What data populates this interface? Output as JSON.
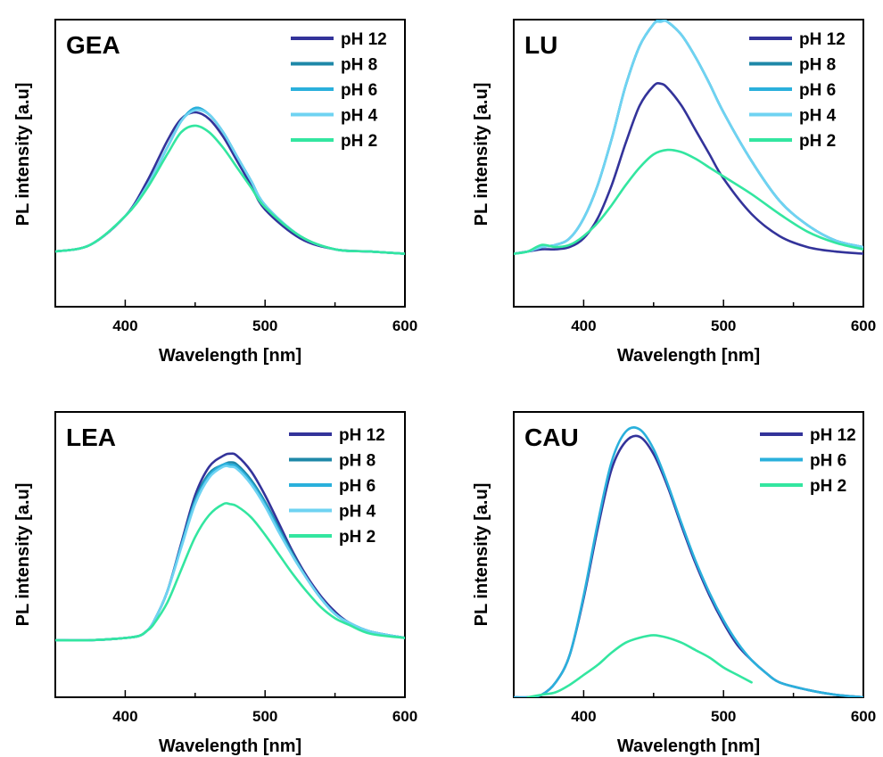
{
  "colors": {
    "pH 12": "#33339a",
    "pH 8": "#1e88a8",
    "pH 6": "#2ab0dc",
    "pH 4": "#6fd3f2",
    "pH 2": "#33e6a0"
  },
  "chart_data": [
    {
      "type": "line",
      "panel_label": "GEA",
      "xlabel": "Wavelength [nm]",
      "ylabel": "PL intensity [a.u]",
      "xlim": [
        350,
        600
      ],
      "ylim": [
        0,
        1.3
      ],
      "xticks": [
        400,
        500,
        600
      ],
      "show_yticks": false,
      "legend": [
        "pH 12",
        "pH 8",
        "pH 6",
        "pH 4",
        "pH 2"
      ],
      "legend_position": "top-right",
      "series": [
        {
          "name": "pH 12",
          "x": [
            350,
            375,
            400,
            415,
            430,
            440,
            450,
            460,
            470,
            480,
            490,
            500,
            525,
            550,
            575,
            600
          ],
          "y": [
            0.25,
            0.28,
            0.41,
            0.56,
            0.75,
            0.85,
            0.88,
            0.85,
            0.77,
            0.66,
            0.55,
            0.44,
            0.31,
            0.26,
            0.25,
            0.24
          ]
        },
        {
          "name": "pH 8",
          "x": [
            350,
            375,
            400,
            415,
            430,
            440,
            450,
            460,
            470,
            480,
            490,
            500,
            525,
            550,
            575,
            600
          ],
          "y": [
            0.25,
            0.28,
            0.41,
            0.54,
            0.72,
            0.84,
            0.9,
            0.87,
            0.79,
            0.68,
            0.57,
            0.46,
            0.32,
            0.26,
            0.25,
            0.24
          ]
        },
        {
          "name": "pH 6",
          "x": [
            350,
            375,
            400,
            415,
            430,
            440,
            450,
            460,
            470,
            480,
            490,
            500,
            525,
            550,
            575,
            600
          ],
          "y": [
            0.25,
            0.28,
            0.41,
            0.54,
            0.72,
            0.84,
            0.9,
            0.87,
            0.79,
            0.68,
            0.57,
            0.46,
            0.32,
            0.26,
            0.25,
            0.24
          ]
        },
        {
          "name": "pH 4",
          "x": [
            350,
            375,
            400,
            415,
            430,
            440,
            450,
            460,
            470,
            480,
            490,
            500,
            525,
            550,
            575,
            600
          ],
          "y": [
            0.25,
            0.28,
            0.41,
            0.54,
            0.72,
            0.84,
            0.89,
            0.87,
            0.79,
            0.68,
            0.57,
            0.46,
            0.32,
            0.26,
            0.25,
            0.24
          ]
        },
        {
          "name": "pH 2",
          "x": [
            350,
            375,
            400,
            415,
            430,
            440,
            450,
            460,
            470,
            480,
            490,
            500,
            525,
            550,
            575,
            600
          ],
          "y": [
            0.25,
            0.28,
            0.41,
            0.53,
            0.69,
            0.79,
            0.82,
            0.79,
            0.72,
            0.63,
            0.54,
            0.45,
            0.32,
            0.26,
            0.25,
            0.24
          ]
        }
      ]
    },
    {
      "type": "line",
      "panel_label": "LU",
      "xlabel": "Wavelength [nm]",
      "ylabel": "PL intensity [a.u]",
      "xlim": [
        350,
        600
      ],
      "ylim": [
        0,
        1.3
      ],
      "xticks": [
        400,
        500,
        600
      ],
      "show_yticks": false,
      "legend": [
        "pH 12",
        "pH 8",
        "pH 6",
        "pH 4",
        "pH 2"
      ],
      "legend_position": "top-right",
      "series": [
        {
          "name": "pH 12",
          "x": [
            350,
            360,
            370,
            380,
            390,
            400,
            410,
            420,
            430,
            440,
            450,
            455,
            460,
            470,
            480,
            490,
            500,
            520,
            540,
            560,
            580,
            600
          ],
          "y": [
            0.24,
            0.25,
            0.26,
            0.26,
            0.27,
            0.31,
            0.4,
            0.55,
            0.74,
            0.91,
            1.0,
            1.01,
            0.99,
            0.91,
            0.8,
            0.69,
            0.58,
            0.42,
            0.32,
            0.27,
            0.25,
            0.24
          ]
        },
        {
          "name": "pH 8",
          "x": [
            350,
            360,
            370,
            380,
            390,
            400,
            410,
            420,
            430,
            440,
            450,
            455,
            460,
            470,
            480,
            490,
            500,
            520,
            540,
            560,
            580,
            600
          ],
          "y": [
            0.24,
            0.25,
            0.27,
            0.28,
            0.31,
            0.4,
            0.55,
            0.76,
            1.0,
            1.18,
            1.28,
            1.3,
            1.29,
            1.23,
            1.13,
            1.01,
            0.88,
            0.66,
            0.48,
            0.37,
            0.3,
            0.27
          ]
        },
        {
          "name": "pH 6",
          "x": [
            350,
            360,
            370,
            380,
            390,
            400,
            410,
            420,
            430,
            440,
            450,
            455,
            460,
            470,
            480,
            490,
            500,
            520,
            540,
            560,
            580,
            600
          ],
          "y": [
            0.24,
            0.25,
            0.27,
            0.28,
            0.31,
            0.4,
            0.55,
            0.76,
            1.0,
            1.18,
            1.28,
            1.3,
            1.29,
            1.23,
            1.13,
            1.01,
            0.88,
            0.66,
            0.48,
            0.37,
            0.3,
            0.27
          ]
        },
        {
          "name": "pH 4",
          "x": [
            350,
            360,
            370,
            380,
            390,
            400,
            410,
            420,
            430,
            440,
            450,
            455,
            460,
            470,
            480,
            490,
            500,
            520,
            540,
            560,
            580,
            600
          ],
          "y": [
            0.24,
            0.25,
            0.27,
            0.28,
            0.31,
            0.4,
            0.55,
            0.76,
            1.0,
            1.18,
            1.28,
            1.29,
            1.29,
            1.23,
            1.13,
            1.01,
            0.88,
            0.66,
            0.48,
            0.37,
            0.3,
            0.27
          ]
        },
        {
          "name": "pH 2",
          "x": [
            350,
            360,
            370,
            380,
            390,
            400,
            410,
            420,
            430,
            440,
            450,
            460,
            470,
            480,
            490,
            500,
            520,
            540,
            560,
            580,
            600
          ],
          "y": [
            0.24,
            0.25,
            0.28,
            0.27,
            0.28,
            0.32,
            0.38,
            0.46,
            0.55,
            0.63,
            0.69,
            0.71,
            0.7,
            0.67,
            0.63,
            0.59,
            0.51,
            0.42,
            0.34,
            0.29,
            0.26
          ]
        }
      ]
    },
    {
      "type": "line",
      "panel_label": "LEA",
      "xlabel": "Wavelength [nm]",
      "ylabel": "PL intensity [a.u]",
      "xlim": [
        350,
        600
      ],
      "ylim": [
        0,
        1.3
      ],
      "xticks": [
        400,
        500,
        600
      ],
      "show_yticks": false,
      "legend": [
        "pH 12",
        "pH 8",
        "pH 6",
        "pH 4",
        "pH 2"
      ],
      "legend_position": "top-right",
      "series": [
        {
          "name": "pH 12",
          "x": [
            350,
            375,
            400,
            410,
            415,
            420,
            430,
            440,
            450,
            460,
            470,
            475,
            480,
            490,
            500,
            510,
            520,
            530,
            540,
            550,
            560,
            575,
            600
          ],
          "y": [
            0.26,
            0.26,
            0.27,
            0.28,
            0.3,
            0.34,
            0.48,
            0.7,
            0.92,
            1.05,
            1.1,
            1.11,
            1.1,
            1.03,
            0.92,
            0.79,
            0.66,
            0.55,
            0.46,
            0.39,
            0.34,
            0.3,
            0.27
          ]
        },
        {
          "name": "pH 8",
          "x": [
            350,
            375,
            400,
            410,
            415,
            420,
            430,
            440,
            450,
            460,
            470,
            475,
            480,
            490,
            500,
            510,
            520,
            530,
            540,
            550,
            560,
            575,
            600
          ],
          "y": [
            0.26,
            0.26,
            0.27,
            0.28,
            0.3,
            0.34,
            0.48,
            0.69,
            0.9,
            1.02,
            1.06,
            1.07,
            1.06,
            0.99,
            0.89,
            0.77,
            0.65,
            0.54,
            0.45,
            0.38,
            0.34,
            0.3,
            0.27
          ]
        },
        {
          "name": "pH 6",
          "x": [
            350,
            375,
            400,
            410,
            415,
            420,
            430,
            440,
            450,
            460,
            470,
            475,
            480,
            490,
            500,
            510,
            520,
            530,
            540,
            550,
            560,
            575,
            600
          ],
          "y": [
            0.26,
            0.26,
            0.27,
            0.28,
            0.3,
            0.34,
            0.48,
            0.69,
            0.89,
            1.01,
            1.06,
            1.06,
            1.05,
            0.98,
            0.88,
            0.76,
            0.64,
            0.54,
            0.45,
            0.38,
            0.34,
            0.3,
            0.27
          ]
        },
        {
          "name": "pH 4",
          "x": [
            350,
            375,
            400,
            410,
            415,
            420,
            430,
            440,
            450,
            460,
            470,
            475,
            480,
            490,
            500,
            510,
            520,
            530,
            540,
            550,
            560,
            575,
            600
          ],
          "y": [
            0.26,
            0.26,
            0.27,
            0.28,
            0.3,
            0.34,
            0.48,
            0.68,
            0.88,
            1.0,
            1.05,
            1.05,
            1.04,
            0.97,
            0.87,
            0.75,
            0.64,
            0.54,
            0.45,
            0.38,
            0.34,
            0.3,
            0.27
          ]
        },
        {
          "name": "pH 2",
          "x": [
            350,
            375,
            400,
            410,
            415,
            420,
            430,
            440,
            450,
            460,
            470,
            475,
            480,
            490,
            500,
            510,
            520,
            530,
            540,
            550,
            560,
            575,
            600
          ],
          "y": [
            0.26,
            0.26,
            0.27,
            0.28,
            0.3,
            0.33,
            0.43,
            0.58,
            0.73,
            0.83,
            0.88,
            0.88,
            0.87,
            0.82,
            0.74,
            0.65,
            0.56,
            0.48,
            0.41,
            0.36,
            0.33,
            0.29,
            0.27
          ]
        }
      ]
    },
    {
      "type": "line",
      "panel_label": "CAU",
      "xlabel": "Wavelength [nm]",
      "ylabel": "PL intensity [a.u]",
      "xlim": [
        350,
        600
      ],
      "ylim": [
        0,
        1.3
      ],
      "xticks": [
        400,
        500,
        600
      ],
      "show_yticks": false,
      "legend": [
        "pH 12",
        "pH 6",
        "pH 2"
      ],
      "legend_position": "top-right",
      "series": [
        {
          "name": "pH 12",
          "x": [
            350,
            360,
            370,
            380,
            390,
            400,
            410,
            420,
            430,
            440,
            450,
            460,
            470,
            480,
            490,
            500,
            510,
            520,
            530,
            540,
            560,
            580,
            600
          ],
          "y": [
            0.0,
            0.0,
            0.01,
            0.06,
            0.17,
            0.4,
            0.68,
            0.92,
            1.03,
            1.05,
            0.98,
            0.85,
            0.69,
            0.54,
            0.41,
            0.3,
            0.21,
            0.15,
            0.1,
            0.06,
            0.03,
            0.01,
            0.0
          ]
        },
        {
          "name": "pH 6",
          "x": [
            350,
            360,
            370,
            380,
            390,
            400,
            410,
            420,
            430,
            440,
            450,
            460,
            470,
            480,
            490,
            500,
            510,
            520,
            530,
            540,
            560,
            580,
            600
          ],
          "y": [
            0.0,
            0.0,
            0.01,
            0.06,
            0.17,
            0.41,
            0.7,
            0.95,
            1.07,
            1.08,
            1.0,
            0.86,
            0.7,
            0.55,
            0.42,
            0.31,
            0.22,
            0.15,
            0.1,
            0.06,
            0.03,
            0.01,
            0.0
          ]
        },
        {
          "name": "pH 2",
          "x": [
            360,
            370,
            380,
            390,
            400,
            410,
            420,
            430,
            440,
            450,
            460,
            470,
            480,
            490,
            500,
            510,
            520
          ],
          "y": [
            0.0,
            0.01,
            0.02,
            0.05,
            0.09,
            0.13,
            0.18,
            0.22,
            0.24,
            0.25,
            0.24,
            0.22,
            0.19,
            0.16,
            0.12,
            0.09,
            0.06
          ]
        }
      ]
    }
  ]
}
